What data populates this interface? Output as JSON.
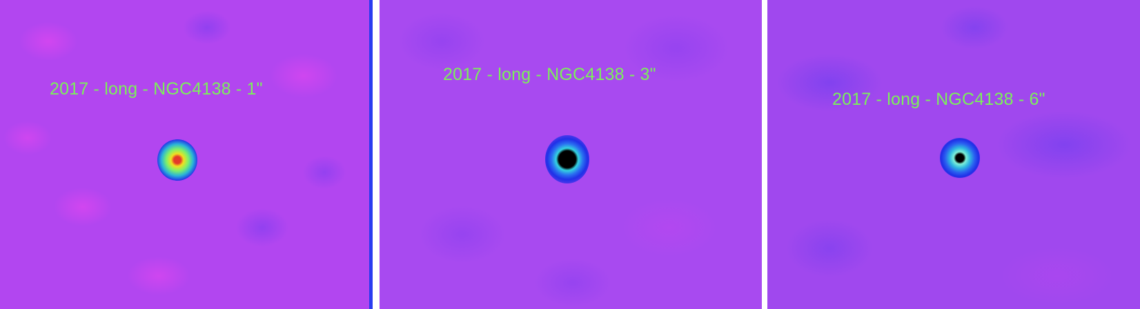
{
  "panels": [
    {
      "label": "2017 - long - NGC4138 - 1\""
    },
    {
      "label": "2017 - long - NGC4138 - 3\""
    },
    {
      "label": "2017 - long - NGC4138 - 6\""
    }
  ],
  "colors": {
    "label_text": "#7cf05a",
    "background_magenta": "#b246f0",
    "background_violet": "#a048ee",
    "peak_red": "#e43a2a",
    "saturated_black": "#000000"
  }
}
